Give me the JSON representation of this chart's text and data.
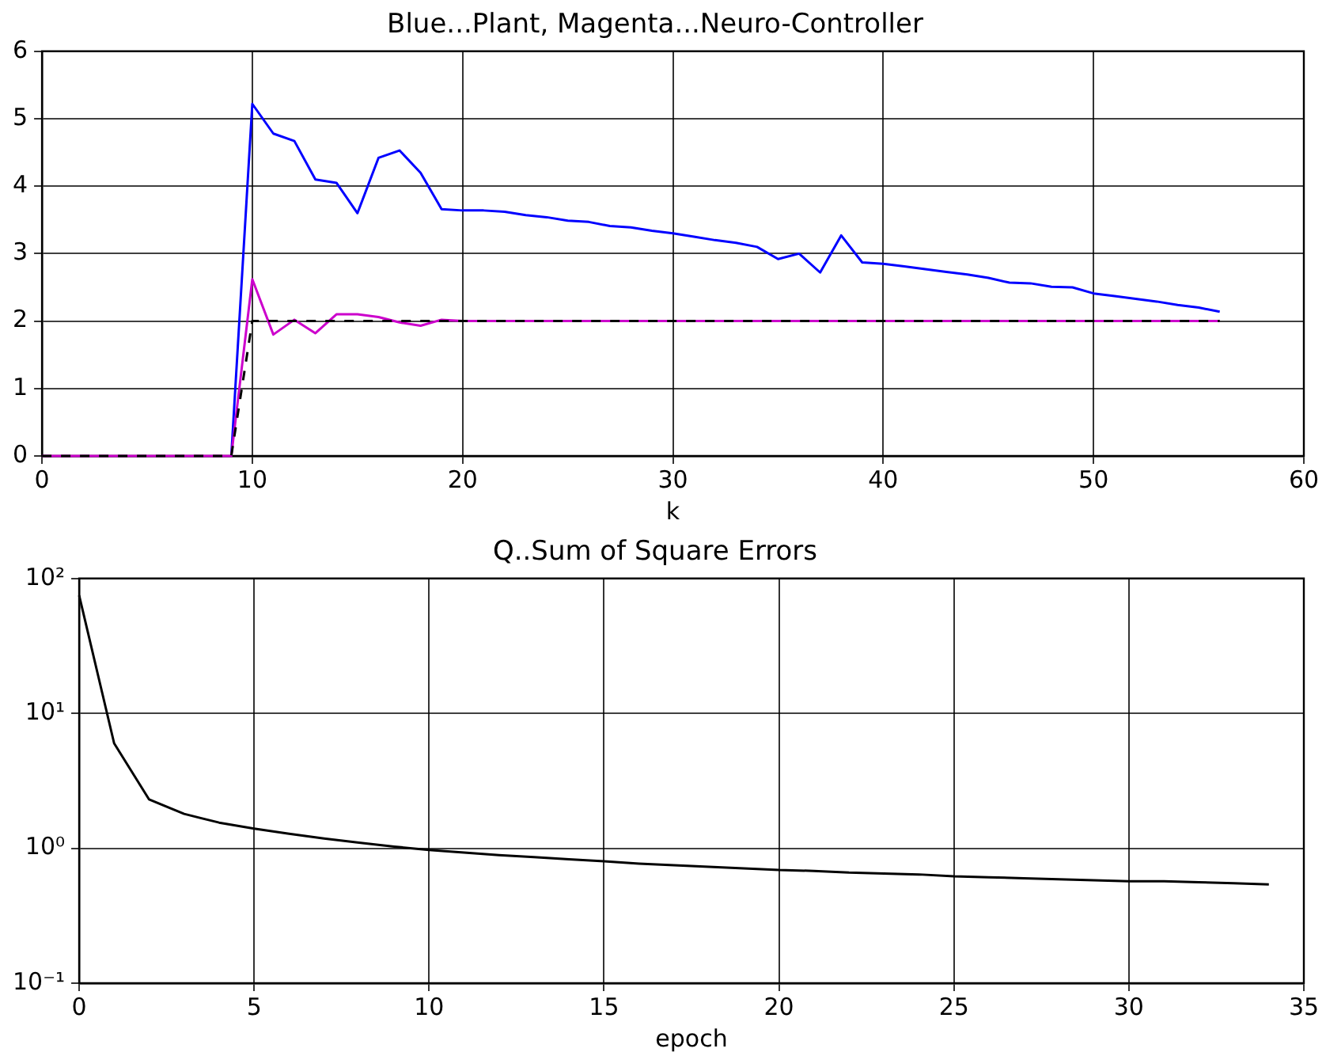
{
  "chart_data": [
    {
      "type": "line",
      "title": "Blue...Plant, Magenta...Neuro-Controller",
      "xlabel": "k",
      "x": [
        0,
        1,
        2,
        3,
        4,
        5,
        6,
        7,
        8,
        9,
        10,
        11,
        12,
        13,
        14,
        15,
        16,
        17,
        18,
        19,
        20,
        21,
        22,
        23,
        24,
        25,
        26,
        27,
        28,
        29,
        30,
        31,
        32,
        33,
        34,
        35,
        36,
        37,
        38,
        39,
        40,
        41,
        42,
        43,
        44,
        45,
        46,
        47,
        48,
        49,
        50,
        51,
        52,
        53,
        54,
        55,
        56
      ],
      "xlim": [
        0,
        60
      ],
      "xticks": [
        0,
        10,
        20,
        30,
        40,
        50,
        60
      ],
      "ylim": [
        0,
        6
      ],
      "yticks": [
        0,
        1,
        2,
        3,
        4,
        5,
        6
      ],
      "grid": true,
      "legend": false,
      "marker": "none",
      "series": [
        {
          "color": "#0000ff",
          "values": [
            null,
            null,
            null,
            null,
            null,
            null,
            null,
            null,
            null,
            0,
            5.22,
            4.78,
            4.67,
            4.1,
            4.05,
            3.6,
            4.42,
            4.53,
            4.2,
            3.66,
            3.64,
            3.64,
            3.62,
            3.57,
            3.54,
            3.49,
            3.47,
            3.41,
            3.39,
            3.34,
            3.3,
            3.25,
            3.2,
            3.16,
            3.1,
            2.92,
            3.0,
            2.72,
            3.27,
            2.87,
            2.85,
            2.81,
            2.77,
            2.73,
            2.69,
            2.64,
            2.57,
            2.56,
            2.51,
            2.5,
            2.41,
            2.37,
            2.33,
            2.29,
            2.24,
            2.2,
            2.14
          ]
        },
        {
          "color": "#cc00cc",
          "values": [
            0,
            0,
            0,
            0,
            0,
            0,
            0,
            0,
            0,
            0,
            2.62,
            1.8,
            2.02,
            1.82,
            2.1,
            2.1,
            2.06,
            1.98,
            1.93,
            2.02,
            2,
            2,
            2,
            2,
            2,
            2,
            2,
            2,
            2,
            2,
            2,
            2,
            2,
            2,
            2,
            2,
            2,
            2,
            2,
            2,
            2,
            2,
            2,
            2,
            2,
            2,
            2,
            2,
            2,
            2,
            2,
            2,
            2,
            2,
            2,
            2,
            2
          ]
        },
        {
          "color": "#000000",
          "line_style": "dashed",
          "values": [
            0,
            0,
            0,
            0,
            0,
            0,
            0,
            0,
            0,
            0,
            2,
            2,
            2,
            2,
            2,
            2,
            2,
            2,
            2,
            2,
            2,
            2,
            2,
            2,
            2,
            2,
            2,
            2,
            2,
            2,
            2,
            2,
            2,
            2,
            2,
            2,
            2,
            2,
            2,
            2,
            2,
            2,
            2,
            2,
            2,
            2,
            2,
            2,
            2,
            2,
            2,
            2,
            2,
            2,
            2,
            2,
            2
          ]
        }
      ]
    },
    {
      "type": "line",
      "title": "Q..Sum of Square Errors",
      "xlabel": "epoch",
      "x": [
        0,
        1,
        2,
        3,
        4,
        5,
        6,
        7,
        8,
        9,
        10,
        11,
        12,
        13,
        14,
        15,
        16,
        17,
        18,
        19,
        20,
        21,
        22,
        23,
        24,
        25,
        26,
        27,
        28,
        29,
        30,
        31,
        32,
        33,
        34
      ],
      "xlim": [
        0,
        35
      ],
      "xticks": [
        0,
        5,
        10,
        15,
        20,
        25,
        30,
        35
      ],
      "log": "y",
      "ylim": [
        0.1,
        100
      ],
      "yticks": [
        {
          "value": 0.1,
          "label": "10⁻¹"
        },
        {
          "value": 1,
          "label": "10⁰"
        },
        {
          "value": 10,
          "label": "10¹"
        },
        {
          "value": 100,
          "label": "10²"
        }
      ],
      "grid": true,
      "legend": false,
      "marker": "none",
      "series": [
        {
          "color": "#000000",
          "values": [
            75,
            6,
            2.3,
            1.8,
            1.55,
            1.4,
            1.28,
            1.18,
            1.1,
            1.03,
            0.97,
            0.93,
            0.89,
            0.86,
            0.83,
            0.8,
            0.77,
            0.75,
            0.73,
            0.71,
            0.69,
            0.68,
            0.66,
            0.65,
            0.64,
            0.62,
            0.61,
            0.6,
            0.59,
            0.58,
            0.57,
            0.57,
            0.56,
            0.55,
            0.54
          ]
        }
      ]
    }
  ]
}
